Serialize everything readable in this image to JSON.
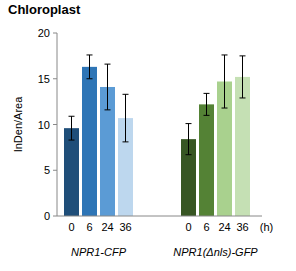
{
  "chart_data": {
    "type": "bar",
    "title": "Chloroplast",
    "y_label": "InDen/Area",
    "categories": [
      "0",
      "6",
      "24",
      "36",
      "0",
      "6",
      "24",
      "36"
    ],
    "values": [
      9.6,
      16.3,
      14.1,
      10.7,
      8.4,
      12.2,
      14.7,
      15.2
    ],
    "errors": [
      1.3,
      1.3,
      2.5,
      2.6,
      1.7,
      1.2,
      2.9,
      2.3
    ],
    "colors": [
      "#1f4e79",
      "#2e75b6",
      "#5b9bd5",
      "#bdd7ee",
      "#375623",
      "#548235",
      "#a9d18e",
      "#c5e0b4"
    ],
    "group_labels": [
      "NPR1-CFP",
      "NPR1(Δnls)-GFP"
    ],
    "annotations": [
      "(h)"
    ],
    "ylim": [
      0,
      20
    ],
    "yticks": [
      0,
      5,
      10,
      15,
      20
    ],
    "grid": false
  }
}
